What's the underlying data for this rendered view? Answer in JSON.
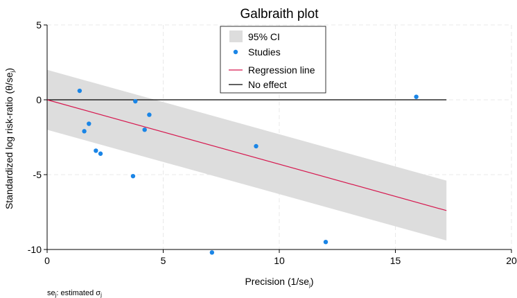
{
  "chart_data": {
    "type": "scatter",
    "title": "Galbraith plot",
    "xlabel_main": "Precision (1/se",
    "xlabel_sub": "j",
    "xlabel_end": ")",
    "ylabel_main": "Standardized log risk-ratio (θ/se",
    "ylabel_sub": "j",
    "ylabel_end": ")",
    "xlim": [
      0,
      20
    ],
    "ylim": [
      -10,
      5
    ],
    "xticks": [
      0,
      5,
      10,
      15,
      20
    ],
    "yticks": [
      -10,
      -5,
      0,
      5
    ],
    "grid": true,
    "legend_position": "top-center",
    "legend": {
      "ci": "95% CI",
      "studies": "Studies",
      "regression": "Regression line",
      "no_effect": "No effect"
    },
    "studies": [
      {
        "x": 1.4,
        "y": 0.6
      },
      {
        "x": 1.6,
        "y": -2.1
      },
      {
        "x": 1.8,
        "y": -1.6
      },
      {
        "x": 2.1,
        "y": -3.4
      },
      {
        "x": 2.3,
        "y": -3.6
      },
      {
        "x": 3.7,
        "y": -5.1
      },
      {
        "x": 3.8,
        "y": -0.1
      },
      {
        "x": 4.2,
        "y": -2.0
      },
      {
        "x": 4.4,
        "y": -1.0
      },
      {
        "x": 7.1,
        "y": -10.2
      },
      {
        "x": 9.0,
        "y": -3.1
      },
      {
        "x": 12.0,
        "y": -9.5
      },
      {
        "x": 15.9,
        "y": 0.2
      }
    ],
    "regression_line": {
      "x": [
        0,
        17.2
      ],
      "y": [
        0,
        -7.4
      ]
    },
    "ci_band": {
      "x": [
        0,
        17.2
      ],
      "upper": [
        2.0,
        -5.4
      ],
      "lower": [
        -2.0,
        -9.4
      ]
    },
    "no_effect_line": {
      "x": [
        0,
        17.2
      ],
      "y": [
        0,
        0
      ]
    },
    "note_main": "se",
    "note_sub": "j",
    "note_mid": ": estimated σ",
    "note_sub2": "j",
    "colors": {
      "ci": "#dddddd",
      "studies": "#1a85e6",
      "regression": "#d6174e",
      "no_effect": "#000000",
      "grid": "#e8e8e8"
    }
  }
}
